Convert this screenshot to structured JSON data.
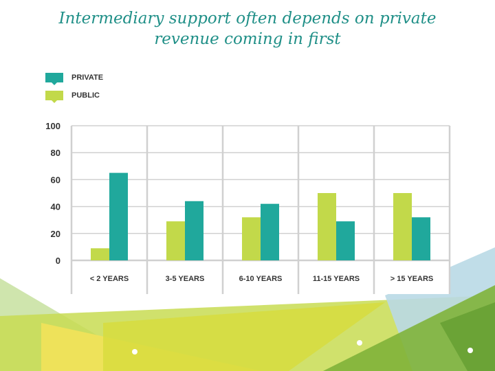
{
  "title_lines": [
    "Intermediary support often depends on private",
    "revenue coming in first"
  ],
  "colors": {
    "title": "#1f8f87",
    "private": "#20a89c",
    "public": "#c2d94a",
    "grid": "#d0d0d0",
    "axis_text": "#333333"
  },
  "chart_data": {
    "type": "bar",
    "title": "",
    "xlabel": "",
    "ylabel": "",
    "ylim": [
      0,
      100
    ],
    "yticks": [
      0,
      20,
      40,
      60,
      80,
      100
    ],
    "grid": true,
    "legend_position": "top-left",
    "categories": [
      "< 2 YEARS",
      "3-5 YEARS",
      "6-10 YEARS",
      "11-15 YEARS",
      "> 15 YEARS"
    ],
    "series": [
      {
        "name": "PUBLIC",
        "color": "#c2d94a",
        "values": [
          9,
          29,
          32,
          50,
          50
        ]
      },
      {
        "name": "PRIVATE",
        "color": "#20a89c",
        "values": [
          65,
          44,
          42,
          29,
          32
        ]
      }
    ],
    "legend_order": [
      "PRIVATE",
      "PUBLIC"
    ]
  }
}
